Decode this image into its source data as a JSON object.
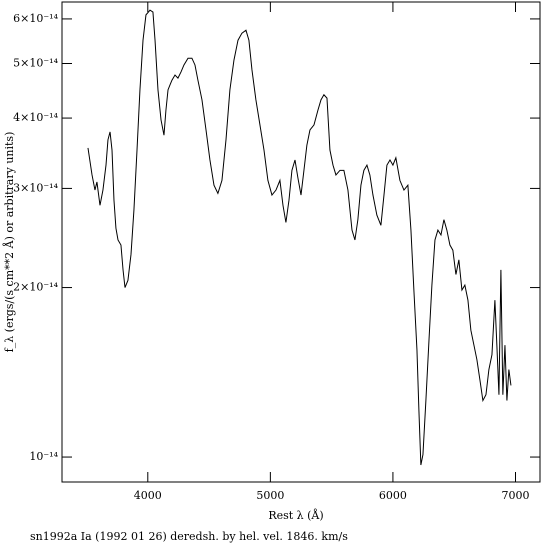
{
  "chart_data": {
    "type": "line",
    "x_label": "Rest λ (Å)",
    "y_label": "f_λ (ergs/(s cm**2 Å) or arbitrary units)",
    "caption": "sn1992a Ia (1992 01 26) deredsh. by hel. vel.  1846. km/s",
    "color": "#000000",
    "yscale": "log",
    "xlim": [
      3300,
      7200
    ],
    "xticks": [
      4000,
      5000,
      6000,
      7000
    ],
    "ylim": [
      9.03e-15,
      6.43e-14
    ],
    "yticks": [
      {
        "value": 1e-14,
        "label": "10⁻¹⁴"
      },
      {
        "value": 2e-14,
        "label": "2×10⁻¹⁴"
      },
      {
        "value": 3e-14,
        "label": "3×10⁻¹⁴"
      },
      {
        "value": 4e-14,
        "label": "4×10⁻¹⁴"
      },
      {
        "value": 5e-14,
        "label": "5×10⁻¹⁴"
      },
      {
        "value": 6e-14,
        "label": "6×10⁻¹⁴"
      }
    ],
    "x": [
      3512,
      3545,
      3569,
      3585,
      3610,
      3634,
      3659,
      3675,
      3692,
      3708,
      3724,
      3740,
      3757,
      3781,
      3798,
      3814,
      3838,
      3863,
      3887,
      3912,
      3936,
      3961,
      3985,
      4018,
      4042,
      4059,
      4083,
      4108,
      4132,
      4148,
      4165,
      4181,
      4197,
      4222,
      4246,
      4271,
      4295,
      4328,
      4360,
      4385,
      4409,
      4442,
      4475,
      4507,
      4540,
      4572,
      4605,
      4638,
      4670,
      4703,
      4736,
      4768,
      4801,
      4825,
      4850,
      4882,
      4915,
      4948,
      4980,
      5013,
      5046,
      5078,
      5103,
      5127,
      5152,
      5176,
      5201,
      5225,
      5250,
      5274,
      5298,
      5323,
      5356,
      5388,
      5413,
      5437,
      5462,
      5486,
      5511,
      5535,
      5568,
      5600,
      5633,
      5666,
      5690,
      5714,
      5739,
      5763,
      5788,
      5812,
      5837,
      5869,
      5902,
      5927,
      5951,
      5976,
      6000,
      6024,
      6057,
      6090,
      6122,
      6147,
      6171,
      6196,
      6212,
      6228,
      6245,
      6269,
      6294,
      6318,
      6343,
      6367,
      6392,
      6416,
      6440,
      6465,
      6489,
      6514,
      6538,
      6563,
      6587,
      6612,
      6636,
      6661,
      6685,
      6710,
      6734,
      6759,
      6783,
      6808,
      6832,
      6848,
      6865,
      6881,
      6897,
      6914,
      6930,
      6946,
      6963
    ],
    "values": [
      3.54e-14,
      3.17e-14,
      2.98e-14,
      3.08e-14,
      2.8e-14,
      2.98e-14,
      3.3e-14,
      3.66e-14,
      3.78e-14,
      3.51e-14,
      2.86e-14,
      2.55e-14,
      2.43e-14,
      2.38e-14,
      2.15e-14,
      2e-14,
      2.06e-14,
      2.29e-14,
      2.75e-14,
      3.51e-14,
      4.49e-14,
      5.5e-14,
      6.1e-14,
      6.22e-14,
      6.17e-14,
      5.5e-14,
      4.49e-14,
      3.97e-14,
      3.73e-14,
      4.13e-14,
      4.49e-14,
      4.58e-14,
      4.67e-14,
      4.77e-14,
      4.71e-14,
      4.83e-14,
      4.97e-14,
      5.11e-14,
      5.11e-14,
      4.97e-14,
      4.67e-14,
      4.31e-14,
      3.81e-14,
      3.37e-14,
      3.04e-14,
      2.94e-14,
      3.1e-14,
      3.66e-14,
      4.49e-14,
      5.07e-14,
      5.5e-14,
      5.66e-14,
      5.73e-14,
      5.5e-14,
      4.87e-14,
      4.31e-14,
      3.89e-14,
      3.51e-14,
      3.1e-14,
      2.92e-14,
      2.98e-14,
      3.1e-14,
      2.8e-14,
      2.61e-14,
      2.86e-14,
      3.23e-14,
      3.37e-14,
      3.13e-14,
      2.92e-14,
      3.23e-14,
      3.58e-14,
      3.81e-14,
      3.89e-14,
      4.13e-14,
      4.31e-14,
      4.4e-14,
      4.34e-14,
      3.51e-14,
      3.3e-14,
      3.17e-14,
      3.23e-14,
      3.23e-14,
      2.98e-14,
      2.53e-14,
      2.43e-14,
      2.64e-14,
      3.04e-14,
      3.23e-14,
      3.3e-14,
      3.17e-14,
      2.92e-14,
      2.69e-14,
      2.58e-14,
      2.92e-14,
      3.3e-14,
      3.37e-14,
      3.3e-14,
      3.4e-14,
      3.1e-14,
      2.98e-14,
      3.04e-14,
      2.53e-14,
      1.98e-14,
      1.55e-14,
      1.21e-14,
      9.68e-15,
      1.01e-14,
      1.26e-14,
      1.61e-14,
      2.02e-14,
      2.43e-14,
      2.53e-14,
      2.48e-14,
      2.64e-14,
      2.53e-14,
      2.38e-14,
      2.33e-14,
      2.11e-14,
      2.24e-14,
      1.98e-14,
      2.02e-14,
      1.9e-14,
      1.68e-14,
      1.58e-14,
      1.49e-14,
      1.37e-14,
      1.26e-14,
      1.29e-14,
      1.43e-14,
      1.52e-14,
      1.9e-14,
      1.58e-14,
      1.29e-14,
      2.15e-14,
      1.29e-14,
      1.58e-14,
      1.26e-14,
      1.43e-14,
      1.34e-14
    ]
  }
}
